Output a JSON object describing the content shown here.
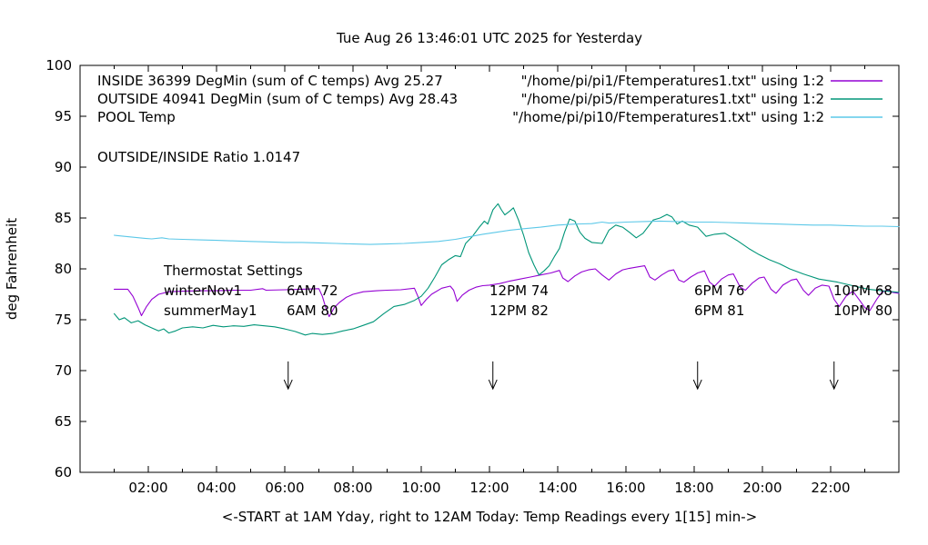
{
  "title": "Tue Aug 26 13:46:01 UTC 2025 for Yesterday",
  "y_axis": {
    "label": "deg Fahrenheit",
    "ticks": [
      60,
      65,
      70,
      75,
      80,
      85,
      90,
      95,
      100
    ],
    "min": 60,
    "max": 100
  },
  "x_axis": {
    "label": "<-START at 1AM Yday, right to 12AM Today:  Temp Readings every 1[15] min->",
    "tick_hours": [
      2,
      4,
      6,
      8,
      10,
      12,
      14,
      16,
      18,
      20,
      22
    ],
    "tick_labels": [
      "02:00",
      "04:00",
      "06:00",
      "08:00",
      "10:00",
      "12:00",
      "14:00",
      "16:00",
      "18:00",
      "20:00",
      "22:00"
    ],
    "minor_tick_hours": [
      1,
      3,
      5,
      7,
      9,
      11,
      13,
      15,
      17,
      19,
      21,
      23
    ],
    "min_hour": 0,
    "max_hour": 24
  },
  "legend": {
    "rows": [
      {
        "label": "INSIDE 36399 DegMin (sum of C temps) Avg 25.27",
        "source": "\"/home/pi/pi1/Ftemperatures1.txt\" using 1:2",
        "color": "#9400d3"
      },
      {
        "label": "OUTSIDE 40941 DegMin (sum of C temps) Avg 28.43",
        "source": "\"/home/pi/pi5/Ftemperatures1.txt\" using 1:2",
        "color": "#009578"
      },
      {
        "label": "POOL Temp",
        "source": "\"/home/pi/pi10/Ftemperatures1.txt\" using 1:2",
        "color": "#5cc8e8"
      }
    ]
  },
  "annotations": {
    "ratio": "OUTSIDE/INSIDE Ratio 1.0147",
    "thermostat": {
      "heading": "Thermostat Settings",
      "rows": [
        {
          "cells": [
            "winterNov1",
            "6AM 72",
            "12PM 74",
            "6PM 76",
            "10PM 68"
          ]
        },
        {
          "cells": [
            "summerMay1",
            "6AM 80",
            "12PM 82",
            "6PM 81",
            "10PM 80"
          ]
        }
      ]
    },
    "arrows": {
      "hours": [
        6.1,
        12.1,
        18.1,
        22.1
      ],
      "stem_top_f": 70.9,
      "tip_f": 68.2,
      "wing_f": 69.1
    }
  },
  "chart_data": {
    "type": "line",
    "title": "Tue Aug 26 13:46:01 UTC 2025 for Yesterday",
    "xlabel": "<-START at 1AM Yday, right to 12AM Today:  Temp Readings every 1[15] min->",
    "ylabel": "deg Fahrenheit",
    "x_unit": "hours since 12AM yesterday",
    "xlim": [
      0,
      24
    ],
    "ylim": [
      60,
      100
    ],
    "grid": false,
    "legend_position": "top inside",
    "series": [
      {
        "name": "INSIDE",
        "color": "#9400d3",
        "points": [
          [
            1.0,
            78.0
          ],
          [
            1.2,
            78.0
          ],
          [
            1.4,
            78.0
          ],
          [
            1.55,
            77.3
          ],
          [
            1.7,
            76.2
          ],
          [
            1.8,
            75.4
          ],
          [
            1.95,
            76.3
          ],
          [
            2.1,
            77.0
          ],
          [
            2.3,
            77.5
          ],
          [
            2.6,
            77.75
          ],
          [
            3.0,
            77.8
          ],
          [
            3.5,
            77.85
          ],
          [
            4.0,
            77.85
          ],
          [
            4.5,
            77.9
          ],
          [
            5.0,
            77.9
          ],
          [
            5.35,
            78.05
          ],
          [
            5.45,
            77.9
          ],
          [
            6.0,
            77.95
          ],
          [
            6.5,
            78.0
          ],
          [
            7.0,
            78.05
          ],
          [
            7.1,
            77.3
          ],
          [
            7.2,
            76.2
          ],
          [
            7.3,
            75.3
          ],
          [
            7.45,
            76.2
          ],
          [
            7.6,
            76.7
          ],
          [
            7.8,
            77.2
          ],
          [
            8.0,
            77.5
          ],
          [
            8.3,
            77.75
          ],
          [
            8.7,
            77.85
          ],
          [
            9.0,
            77.9
          ],
          [
            9.4,
            77.95
          ],
          [
            9.8,
            78.1
          ],
          [
            9.9,
            77.3
          ],
          [
            10.0,
            76.4
          ],
          [
            10.15,
            77.0
          ],
          [
            10.3,
            77.5
          ],
          [
            10.6,
            78.1
          ],
          [
            10.85,
            78.3
          ],
          [
            10.95,
            77.9
          ],
          [
            11.05,
            76.8
          ],
          [
            11.2,
            77.4
          ],
          [
            11.4,
            77.9
          ],
          [
            11.6,
            78.2
          ],
          [
            11.8,
            78.35
          ],
          [
            12.0,
            78.4
          ],
          [
            12.3,
            78.55
          ],
          [
            12.6,
            78.8
          ],
          [
            12.9,
            79.0
          ],
          [
            13.2,
            79.2
          ],
          [
            13.5,
            79.4
          ],
          [
            13.8,
            79.6
          ],
          [
            14.05,
            79.85
          ],
          [
            14.15,
            79.1
          ],
          [
            14.3,
            78.75
          ],
          [
            14.5,
            79.3
          ],
          [
            14.7,
            79.7
          ],
          [
            14.9,
            79.9
          ],
          [
            15.1,
            80.0
          ],
          [
            15.3,
            79.4
          ],
          [
            15.5,
            78.9
          ],
          [
            15.7,
            79.5
          ],
          [
            15.9,
            79.9
          ],
          [
            16.1,
            80.05
          ],
          [
            16.35,
            80.2
          ],
          [
            16.55,
            80.3
          ],
          [
            16.7,
            79.2
          ],
          [
            16.85,
            78.9
          ],
          [
            17.05,
            79.4
          ],
          [
            17.25,
            79.8
          ],
          [
            17.4,
            79.9
          ],
          [
            17.55,
            78.9
          ],
          [
            17.7,
            78.7
          ],
          [
            17.9,
            79.2
          ],
          [
            18.1,
            79.6
          ],
          [
            18.3,
            79.8
          ],
          [
            18.45,
            78.7
          ],
          [
            18.6,
            78.3
          ],
          [
            18.8,
            79.0
          ],
          [
            19.0,
            79.4
          ],
          [
            19.15,
            79.5
          ],
          [
            19.35,
            78.2
          ],
          [
            19.5,
            77.9
          ],
          [
            19.7,
            78.6
          ],
          [
            19.9,
            79.1
          ],
          [
            20.05,
            79.2
          ],
          [
            20.25,
            78.0
          ],
          [
            20.4,
            77.6
          ],
          [
            20.6,
            78.4
          ],
          [
            20.85,
            78.9
          ],
          [
            21.0,
            79.0
          ],
          [
            21.2,
            77.9
          ],
          [
            21.35,
            77.4
          ],
          [
            21.55,
            78.1
          ],
          [
            21.75,
            78.4
          ],
          [
            21.95,
            78.3
          ],
          [
            22.1,
            77.0
          ],
          [
            22.25,
            76.3
          ],
          [
            22.45,
            77.3
          ],
          [
            22.65,
            77.8
          ],
          [
            22.85,
            76.9
          ],
          [
            23.0,
            76.2
          ],
          [
            23.15,
            75.9
          ],
          [
            23.35,
            77.0
          ],
          [
            23.5,
            77.7
          ],
          [
            23.65,
            77.9
          ],
          [
            23.8,
            77.7
          ],
          [
            24.0,
            77.6
          ]
        ]
      },
      {
        "name": "OUTSIDE",
        "color": "#009578",
        "points": [
          [
            1.0,
            75.6
          ],
          [
            1.15,
            75.0
          ],
          [
            1.3,
            75.2
          ],
          [
            1.5,
            74.7
          ],
          [
            1.7,
            74.9
          ],
          [
            1.9,
            74.5
          ],
          [
            2.1,
            74.2
          ],
          [
            2.3,
            73.9
          ],
          [
            2.45,
            74.1
          ],
          [
            2.6,
            73.7
          ],
          [
            2.8,
            73.9
          ],
          [
            3.0,
            74.2
          ],
          [
            3.3,
            74.3
          ],
          [
            3.6,
            74.2
          ],
          [
            3.9,
            74.45
          ],
          [
            4.2,
            74.3
          ],
          [
            4.5,
            74.4
          ],
          [
            4.8,
            74.35
          ],
          [
            5.1,
            74.5
          ],
          [
            5.4,
            74.4
          ],
          [
            5.7,
            74.3
          ],
          [
            6.0,
            74.1
          ],
          [
            6.3,
            73.85
          ],
          [
            6.6,
            73.5
          ],
          [
            6.8,
            73.65
          ],
          [
            7.1,
            73.55
          ],
          [
            7.4,
            73.65
          ],
          [
            7.7,
            73.9
          ],
          [
            8.0,
            74.1
          ],
          [
            8.3,
            74.45
          ],
          [
            8.6,
            74.8
          ],
          [
            8.9,
            75.6
          ],
          [
            9.2,
            76.3
          ],
          [
            9.5,
            76.5
          ],
          [
            9.8,
            76.9
          ],
          [
            10.0,
            77.3
          ],
          [
            10.2,
            78.1
          ],
          [
            10.4,
            79.2
          ],
          [
            10.6,
            80.4
          ],
          [
            10.8,
            80.9
          ],
          [
            11.0,
            81.3
          ],
          [
            11.15,
            81.2
          ],
          [
            11.3,
            82.5
          ],
          [
            11.5,
            83.2
          ],
          [
            11.7,
            84.1
          ],
          [
            11.85,
            84.7
          ],
          [
            11.95,
            84.4
          ],
          [
            12.1,
            85.8
          ],
          [
            12.25,
            86.4
          ],
          [
            12.35,
            85.8
          ],
          [
            12.45,
            85.3
          ],
          [
            12.6,
            85.7
          ],
          [
            12.7,
            86.0
          ],
          [
            12.85,
            84.8
          ],
          [
            13.0,
            83.3
          ],
          [
            13.15,
            81.6
          ],
          [
            13.3,
            80.4
          ],
          [
            13.45,
            79.4
          ],
          [
            13.6,
            79.8
          ],
          [
            13.75,
            80.3
          ],
          [
            13.9,
            81.2
          ],
          [
            14.05,
            82.0
          ],
          [
            14.2,
            83.6
          ],
          [
            14.35,
            84.9
          ],
          [
            14.5,
            84.7
          ],
          [
            14.65,
            83.6
          ],
          [
            14.8,
            83.0
          ],
          [
            15.0,
            82.6
          ],
          [
            15.3,
            82.5
          ],
          [
            15.5,
            83.8
          ],
          [
            15.7,
            84.3
          ],
          [
            15.9,
            84.1
          ],
          [
            16.1,
            83.6
          ],
          [
            16.3,
            83.05
          ],
          [
            16.5,
            83.5
          ],
          [
            16.8,
            84.8
          ],
          [
            17.0,
            85.0
          ],
          [
            17.2,
            85.35
          ],
          [
            17.35,
            85.1
          ],
          [
            17.5,
            84.4
          ],
          [
            17.65,
            84.7
          ],
          [
            17.85,
            84.3
          ],
          [
            18.1,
            84.1
          ],
          [
            18.35,
            83.2
          ],
          [
            18.6,
            83.4
          ],
          [
            18.9,
            83.5
          ],
          [
            19.25,
            82.8
          ],
          [
            19.6,
            82.0
          ],
          [
            19.9,
            81.4
          ],
          [
            20.2,
            80.9
          ],
          [
            20.5,
            80.5
          ],
          [
            20.8,
            80.0
          ],
          [
            21.2,
            79.5
          ],
          [
            21.65,
            79.0
          ],
          [
            22.2,
            78.7
          ],
          [
            22.7,
            78.3
          ],
          [
            23.1,
            78.0
          ],
          [
            23.5,
            77.85
          ],
          [
            24.0,
            77.7
          ]
        ]
      },
      {
        "name": "POOL",
        "color": "#5cc8e8",
        "points": [
          [
            1.0,
            83.3
          ],
          [
            1.3,
            83.2
          ],
          [
            1.6,
            83.1
          ],
          [
            1.9,
            83.0
          ],
          [
            2.1,
            82.95
          ],
          [
            2.4,
            83.05
          ],
          [
            2.6,
            82.95
          ],
          [
            3.0,
            82.9
          ],
          [
            3.5,
            82.85
          ],
          [
            4.0,
            82.8
          ],
          [
            4.5,
            82.75
          ],
          [
            5.0,
            82.7
          ],
          [
            5.5,
            82.65
          ],
          [
            6.0,
            82.6
          ],
          [
            6.5,
            82.6
          ],
          [
            7.0,
            82.55
          ],
          [
            7.5,
            82.5
          ],
          [
            8.0,
            82.45
          ],
          [
            8.5,
            82.4
          ],
          [
            9.0,
            82.45
          ],
          [
            9.5,
            82.5
          ],
          [
            10.0,
            82.6
          ],
          [
            10.5,
            82.7
          ],
          [
            11.0,
            82.9
          ],
          [
            11.4,
            83.15
          ],
          [
            11.8,
            83.4
          ],
          [
            12.2,
            83.6
          ],
          [
            12.6,
            83.8
          ],
          [
            13.0,
            83.95
          ],
          [
            13.5,
            84.1
          ],
          [
            14.0,
            84.3
          ],
          [
            14.5,
            84.4
          ],
          [
            15.0,
            84.45
          ],
          [
            15.3,
            84.6
          ],
          [
            15.5,
            84.5
          ],
          [
            16.0,
            84.6
          ],
          [
            16.5,
            84.65
          ],
          [
            17.0,
            84.7
          ],
          [
            17.5,
            84.65
          ],
          [
            18.0,
            84.6
          ],
          [
            18.5,
            84.6
          ],
          [
            19.0,
            84.55
          ],
          [
            19.5,
            84.5
          ],
          [
            20.0,
            84.45
          ],
          [
            20.5,
            84.4
          ],
          [
            21.0,
            84.35
          ],
          [
            21.5,
            84.3
          ],
          [
            22.0,
            84.3
          ],
          [
            22.5,
            84.25
          ],
          [
            23.0,
            84.2
          ],
          [
            23.5,
            84.2
          ],
          [
            24.0,
            84.15
          ]
        ]
      }
    ]
  }
}
